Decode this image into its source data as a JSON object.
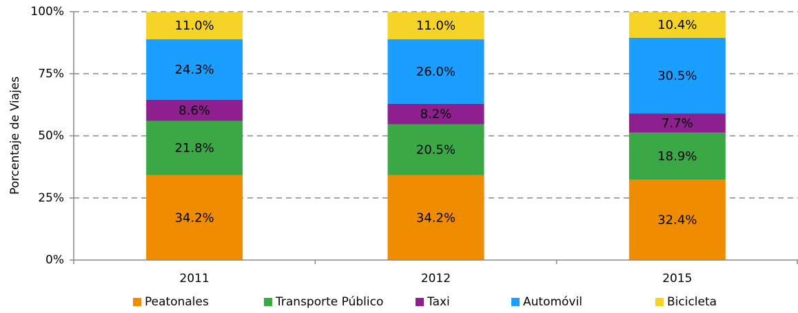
{
  "chart_data": {
    "type": "stacked_bar",
    "y_label": "Porcentaje de Viajes",
    "categories": [
      "2011",
      "2012",
      "2015"
    ],
    "series": [
      {
        "name": "Peatonales",
        "color": "#f08c00",
        "values": [
          34.2,
          34.2,
          32.4
        ],
        "value_labels": [
          "34.2%",
          "34.2%",
          "32.4%"
        ]
      },
      {
        "name": "Transporte Público",
        "color": "#3aa845",
        "values": [
          21.8,
          20.5,
          18.9
        ],
        "value_labels": [
          "21.8%",
          "20.5%",
          "18.9%"
        ]
      },
      {
        "name": "Taxi",
        "color": "#8e1f8e",
        "values": [
          8.6,
          8.2,
          7.7
        ],
        "value_labels": [
          "8.6%",
          "8.2%",
          "7.7%"
        ]
      },
      {
        "name": "Automóvil",
        "color": "#1a9eff",
        "values": [
          24.3,
          26.0,
          30.5
        ],
        "value_labels": [
          "24.3%",
          "26.0%",
          "30.5%"
        ]
      },
      {
        "name": "Bicicleta",
        "color": "#f5d327",
        "values": [
          11.0,
          11.0,
          10.4
        ],
        "value_labels": [
          "11.0%",
          "11.0%",
          "10.4%"
        ]
      }
    ],
    "ylim": [
      0,
      100
    ],
    "yticks": [
      {
        "value": 0,
        "label": "0%"
      },
      {
        "value": 25,
        "label": "25%"
      },
      {
        "value": 50,
        "label": "50%"
      },
      {
        "value": 75,
        "label": "75%"
      },
      {
        "value": 100,
        "label": "100%"
      }
    ],
    "grid": true,
    "legend": "bottom"
  }
}
